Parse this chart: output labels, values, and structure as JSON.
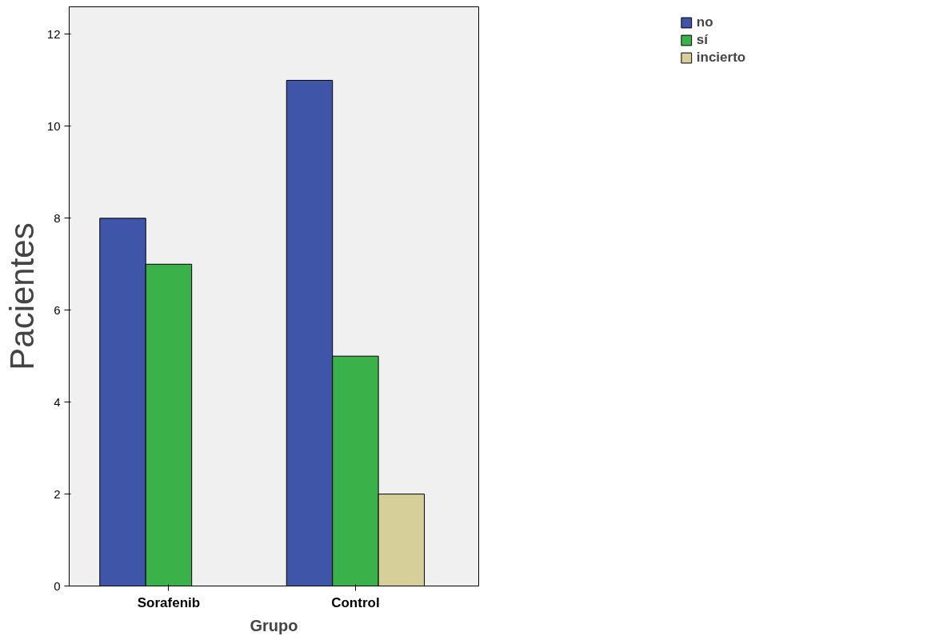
{
  "chart_data": {
    "type": "bar",
    "xlabel": "Grupo",
    "ylabel": "Pacientes",
    "categories": [
      "Sorafenib",
      "Control"
    ],
    "series": [
      {
        "name": "no",
        "color": "#3f55a8",
        "values": [
          8,
          11
        ]
      },
      {
        "name": "sí",
        "color": "#3bb249",
        "values": [
          7,
          5
        ]
      },
      {
        "name": "incierto",
        "color": "#d6cf9a",
        "values": [
          null,
          2
        ]
      }
    ],
    "ylim": [
      0,
      12.6
    ],
    "yticks": [
      0,
      2,
      4,
      6,
      8,
      10,
      12
    ],
    "grid": false,
    "legend": "top right"
  }
}
